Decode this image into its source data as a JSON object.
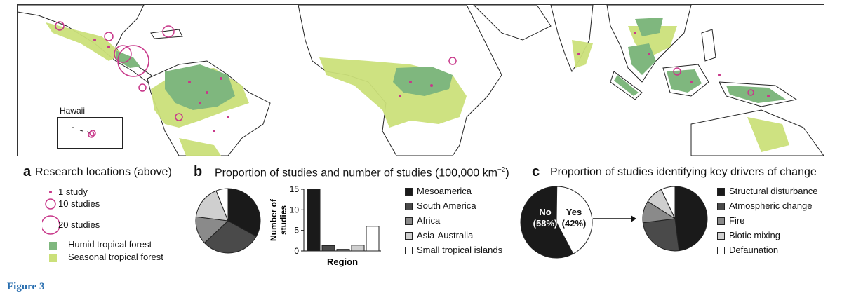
{
  "map": {
    "hawaii_label": "Hawaii",
    "colors": {
      "humid": "#7fb77e",
      "seasonal": "#cbe07a",
      "study": "#c8388a",
      "land_line": "#222"
    }
  },
  "panel_a": {
    "letter": "a",
    "title": "Research locations (above)",
    "legend": {
      "one_study": "1 study",
      "ten_studies": "10 studies",
      "twenty_studies": "20 studies",
      "humid": "Humid tropical forest",
      "seasonal": "Seasonal tropical forest"
    }
  },
  "panel_b": {
    "letter": "b",
    "title": "Proportion of studies and number of studies (100,000 km",
    "title_sup": "−2",
    "title_end": ")",
    "legend": [
      "Mesoamerica",
      "South America",
      "Africa",
      "Asia-Australia",
      "Small tropical islands"
    ],
    "colors": [
      "#1a1a1a",
      "#4a4a4a",
      "#8a8a8a",
      "#cfcfcf",
      "#ffffff"
    ]
  },
  "panel_c": {
    "letter": "c",
    "title": "Proportion of studies identifying key drivers of change",
    "no_label": "No",
    "no_pct": "(58%)",
    "yes_label": "Yes",
    "yes_pct": "(42%)",
    "legend": [
      "Structural disturbance",
      "Atmospheric change",
      "Fire",
      "Biotic mixing",
      "Defaunation"
    ],
    "colors": [
      "#1a1a1a",
      "#4a4a4a",
      "#8a8a8a",
      "#cfcfcf",
      "#ffffff"
    ]
  },
  "caption": "Figure 3",
  "chart_data": [
    {
      "type": "pie",
      "labels": [
        "Mesoamerica",
        "South America",
        "Africa",
        "Asia-Australia",
        "Small tropical islands"
      ],
      "values": [
        33,
        30,
        14,
        17,
        6
      ]
    },
    {
      "type": "bar",
      "categories": [
        "Mesoamerica",
        "South America",
        "Africa",
        "Asia-Australia",
        "Small tropical islands"
      ],
      "values": [
        15,
        1.3,
        0.4,
        1.4,
        6
      ],
      "xlabel": "Region",
      "ylabel": "Number of studies",
      "ylim": [
        0,
        15
      ],
      "yticks": [
        0,
        5,
        10,
        15
      ]
    },
    {
      "type": "pie",
      "labels": [
        "No",
        "Yes"
      ],
      "values": [
        58,
        42
      ]
    },
    {
      "type": "pie",
      "labels": [
        "Structural disturbance",
        "Atmospheric change",
        "Fire",
        "Biotic mixing",
        "Defaunation"
      ],
      "values": [
        48,
        25,
        11,
        9,
        7
      ]
    }
  ]
}
